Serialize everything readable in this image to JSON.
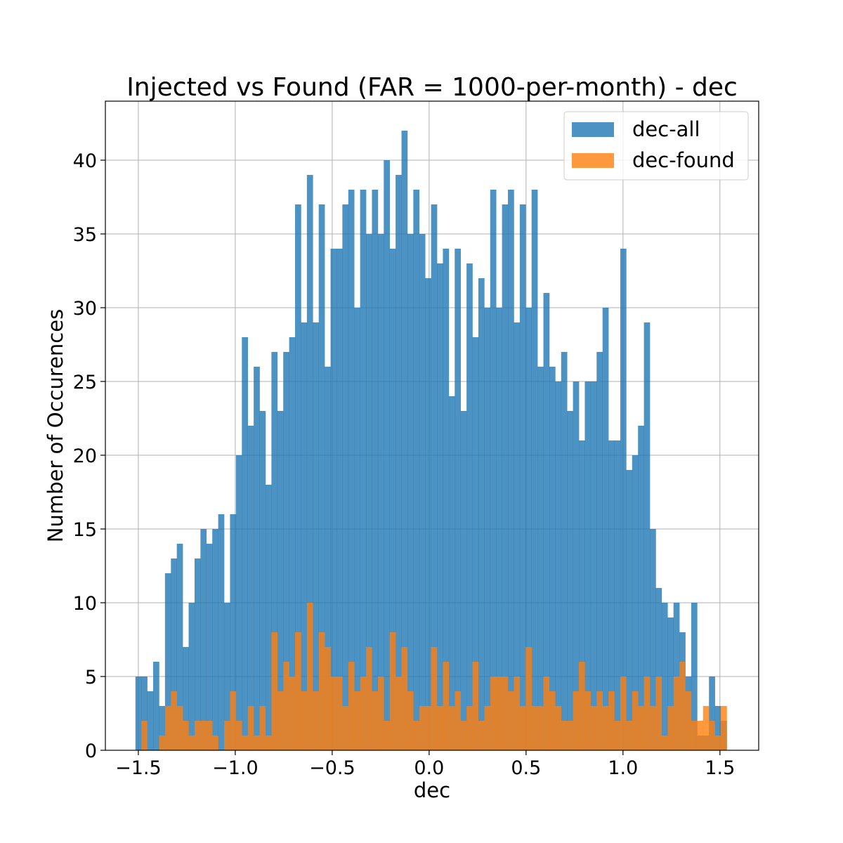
{
  "chart_data": {
    "type": "bar",
    "title": "Injected vs Found (FAR = 1000-per-month) - dec",
    "xlabel": "dec",
    "ylabel": "Number of Occurences",
    "xlim": [
      -1.67,
      1.7
    ],
    "ylim": [
      0,
      44
    ],
    "grid": true,
    "legend": "top-right",
    "x_ticks": [
      -1.5,
      -1.0,
      -0.5,
      0.0,
      0.5,
      1.0,
      1.5
    ],
    "x_tick_labels": [
      "−1.5",
      "−1.0",
      "−0.5",
      "0.0",
      "0.5",
      "1.0",
      "1.5"
    ],
    "y_ticks": [
      0,
      5,
      10,
      15,
      20,
      25,
      30,
      35,
      40
    ],
    "y_tick_labels": [
      "0",
      "5",
      "10",
      "15",
      "20",
      "25",
      "30",
      "35",
      "40"
    ],
    "bins": {
      "start": -1.515,
      "width": 0.0305
    },
    "series": [
      {
        "name": "dec-all",
        "color": "#1f77b4",
        "opacity": 0.8,
        "values": [
          5,
          5,
          4,
          6,
          3,
          12,
          13,
          14,
          7,
          10,
          13,
          15,
          14,
          15,
          16,
          10,
          16,
          20,
          28,
          22,
          26,
          23,
          18,
          27,
          23,
          27,
          28,
          37,
          29,
          39,
          29,
          37,
          26,
          34,
          34,
          37,
          38,
          30,
          38,
          35,
          38,
          35,
          40,
          34,
          39,
          42,
          35,
          38,
          35,
          32,
          37,
          33,
          34,
          24,
          34,
          23,
          33,
          28,
          32,
          30,
          38,
          30,
          37,
          38,
          29,
          37,
          30,
          38,
          26,
          31,
          26,
          25,
          27,
          23,
          25,
          21,
          25,
          25,
          27,
          30,
          21,
          21,
          34,
          19,
          20,
          22,
          29,
          15,
          11,
          10,
          9,
          10,
          8,
          5,
          10,
          1,
          1,
          5,
          3,
          2
        ]
      },
      {
        "name": "dec-found",
        "color": "#ff7f0e",
        "opacity": 0.8,
        "values": [
          0,
          2,
          0,
          0,
          1,
          3,
          4,
          3,
          2,
          1,
          2,
          2,
          2,
          1,
          0,
          2,
          4,
          2,
          1,
          3,
          1,
          3,
          1,
          8,
          4,
          6,
          5,
          8,
          4,
          10,
          4,
          8,
          7,
          5,
          5,
          3,
          6,
          4,
          5,
          7,
          4,
          5,
          2,
          8,
          5,
          7,
          4,
          2,
          3,
          3,
          7,
          3,
          6,
          3,
          4,
          2,
          3,
          6,
          2,
          3,
          5,
          5,
          5,
          4,
          5,
          3,
          7,
          3,
          3,
          5,
          4,
          3,
          2,
          2,
          4,
          6,
          4,
          3,
          4,
          3,
          4,
          2,
          5,
          2,
          4,
          3,
          5,
          3,
          5,
          1,
          3,
          5,
          6,
          4,
          2,
          2,
          3,
          2,
          1,
          3
        ]
      }
    ]
  }
}
